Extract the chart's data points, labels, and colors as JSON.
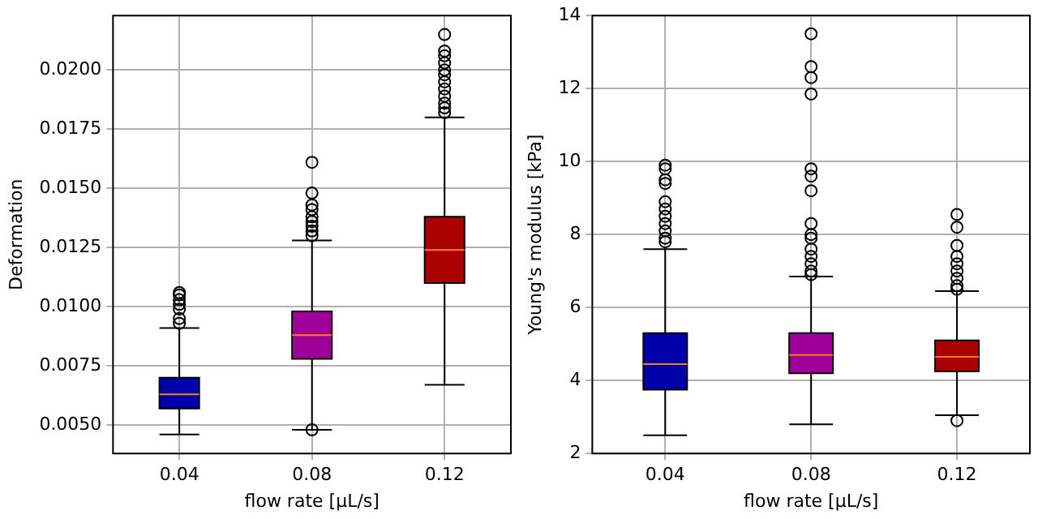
{
  "chart_data": [
    {
      "type": "box",
      "xlabel": "flow rate [µL/s]",
      "ylabel": "Deformation",
      "categories": [
        "0.04",
        "0.08",
        "0.12"
      ],
      "colors": [
        "#0000aa",
        "#a0009a",
        "#aa0000"
      ],
      "grid": true,
      "boxes": [
        {
          "low": 0.0046,
          "q1": 0.0057,
          "median": 0.0063,
          "q3": 0.007,
          "high": 0.0091,
          "outliers": [
            0.0093,
            0.0095,
            0.0099,
            0.0101,
            0.0103,
            0.0105,
            0.0106
          ]
        },
        {
          "low": 0.0048,
          "q1": 0.0078,
          "median": 0.0088,
          "q3": 0.0098,
          "high": 0.0128,
          "outliers": [
            0.0048,
            0.013,
            0.0132,
            0.0134,
            0.0136,
            0.0138,
            0.0141,
            0.0143,
            0.0148,
            0.0161
          ]
        },
        {
          "low": 0.0067,
          "q1": 0.011,
          "median": 0.0124,
          "q3": 0.0138,
          "high": 0.018,
          "outliers": [
            0.0182,
            0.0184,
            0.0186,
            0.0189,
            0.0192,
            0.0195,
            0.0198,
            0.02,
            0.0203,
            0.0206,
            0.0208,
            0.0215
          ]
        }
      ],
      "ylim": [
        0.0038,
        0.0223
      ],
      "yticks": [
        {
          "value": 0.005,
          "label": "0.0050"
        },
        {
          "value": 0.0075,
          "label": "0.0075"
        },
        {
          "value": 0.01,
          "label": "0.0100"
        },
        {
          "value": 0.0125,
          "label": "0.0125"
        },
        {
          "value": 0.015,
          "label": "0.0150"
        },
        {
          "value": 0.0175,
          "label": "0.0175"
        },
        {
          "value": 0.02,
          "label": "0.0200"
        }
      ]
    },
    {
      "type": "box",
      "xlabel": "flow rate [µL/s]",
      "ylabel": "Young's modulus [kPa]",
      "categories": [
        "0.04",
        "0.08",
        "0.12"
      ],
      "colors": [
        "#0000aa",
        "#a0009a",
        "#aa0000"
      ],
      "grid": true,
      "boxes": [
        {
          "low": 2.5,
          "q1": 3.75,
          "median": 4.45,
          "q3": 5.3,
          "high": 7.6,
          "outliers": [
            7.8,
            7.9,
            8.1,
            8.3,
            8.5,
            8.7,
            8.9,
            9.4,
            9.5,
            9.8,
            9.9
          ]
        },
        {
          "low": 2.8,
          "q1": 4.2,
          "median": 4.7,
          "q3": 5.3,
          "high": 6.85,
          "outliers": [
            6.9,
            7.0,
            7.2,
            7.4,
            7.6,
            7.9,
            8.0,
            8.3,
            9.2,
            9.6,
            9.8,
            11.85,
            12.3,
            12.6,
            13.5
          ]
        },
        {
          "low": 3.05,
          "q1": 4.25,
          "median": 4.65,
          "q3": 5.1,
          "high": 6.45,
          "outliers": [
            2.9,
            6.5,
            6.6,
            6.8,
            7.0,
            7.2,
            7.4,
            7.7,
            8.2,
            8.55
          ]
        }
      ],
      "ylim": [
        2,
        14
      ],
      "yticks": [
        2,
        4,
        6,
        8,
        10,
        12,
        14
      ]
    }
  ]
}
